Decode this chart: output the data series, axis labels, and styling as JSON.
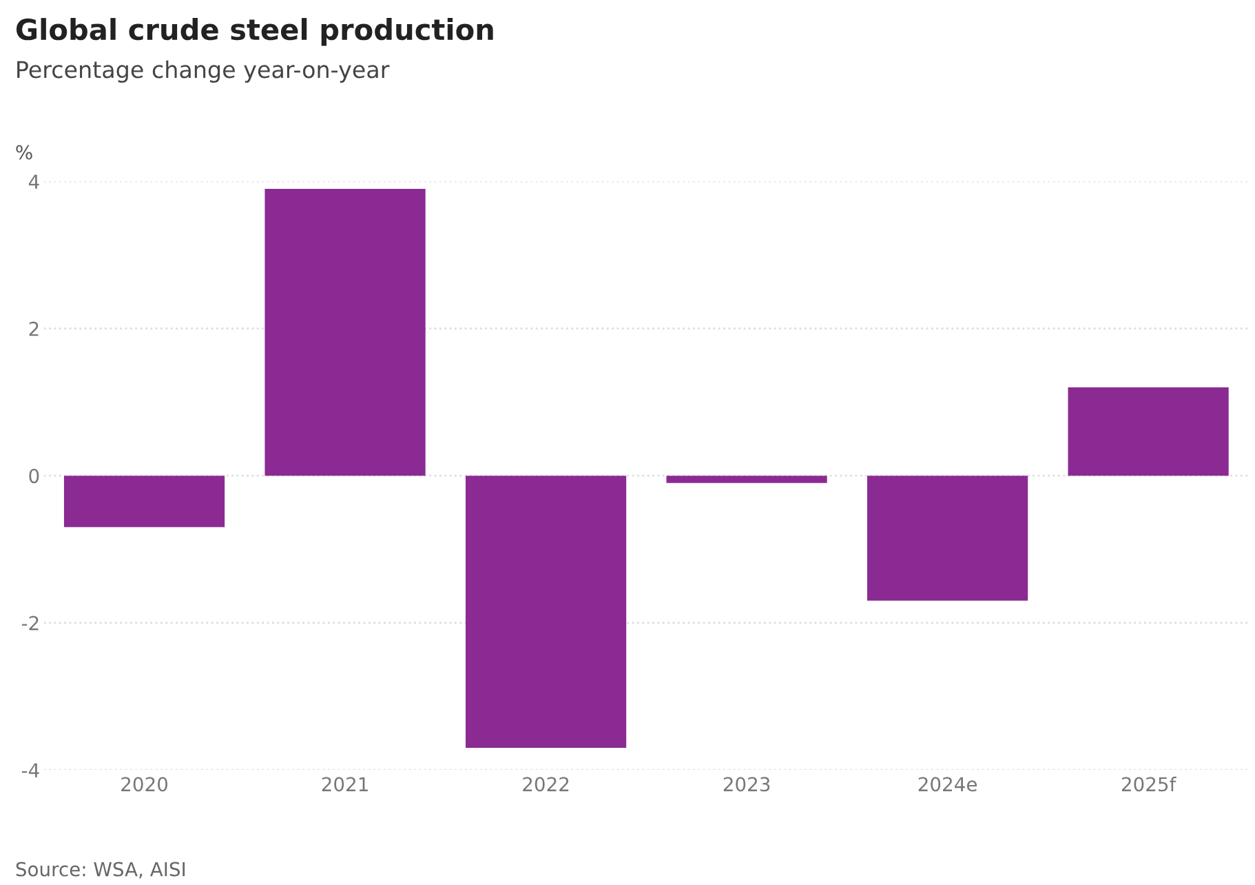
{
  "chart_data": {
    "type": "bar",
    "title": "Global crude steel production",
    "subtitle": "Percentage change year-on-year",
    "ylabel": "%",
    "categories": [
      "2020",
      "2021",
      "2022",
      "2023",
      "2024e",
      "2025f"
    ],
    "values": [
      -0.7,
      3.9,
      -3.7,
      -0.1,
      -1.7,
      1.2
    ],
    "color": "#8b2a93",
    "ylim": [
      -4,
      4
    ],
    "yticks": [
      -4,
      -2,
      0,
      2,
      4
    ],
    "grid": "y",
    "annotations": [
      "Source: WSA, AISI"
    ]
  }
}
